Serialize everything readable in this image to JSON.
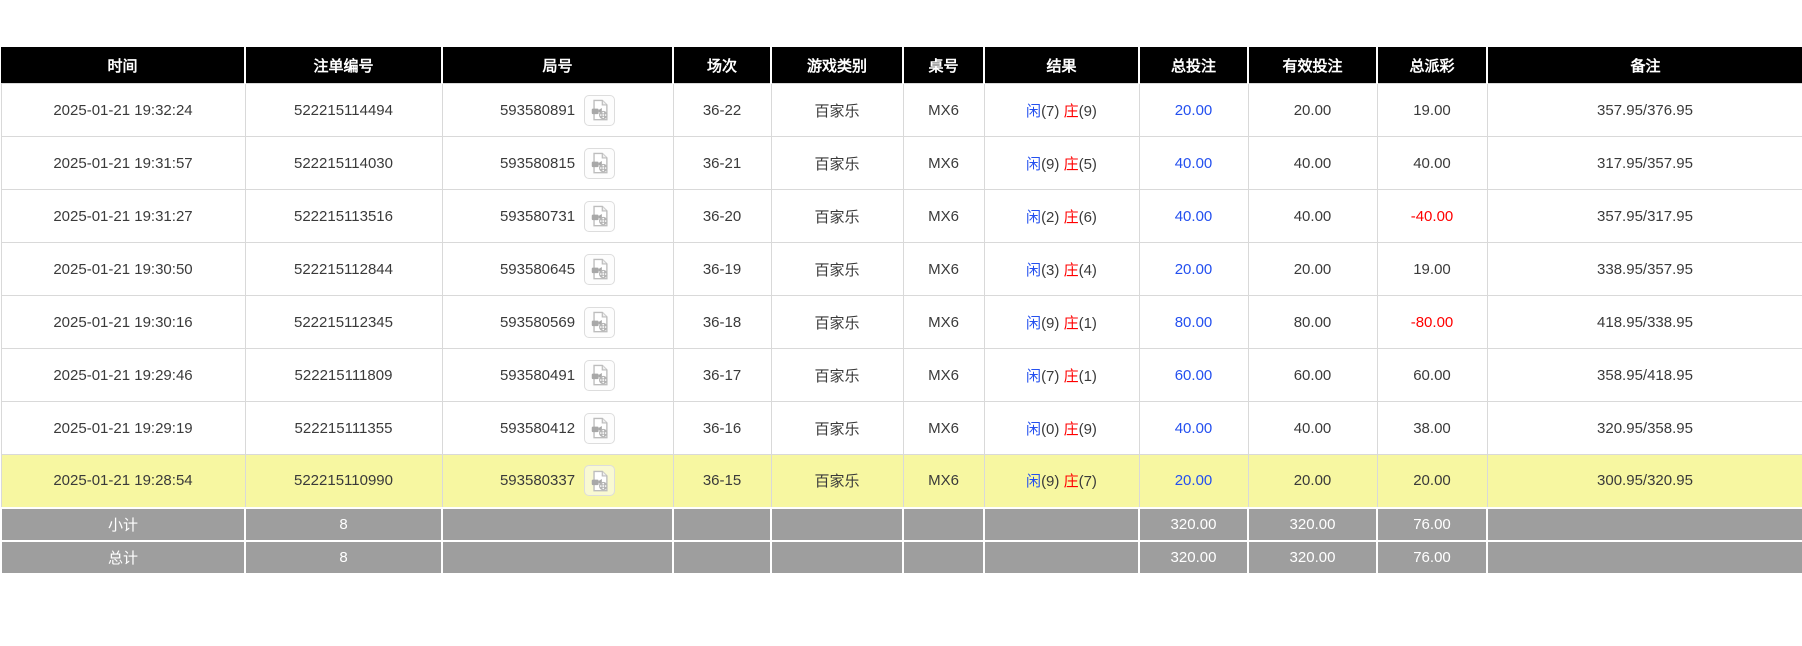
{
  "colors": {
    "header_bg": "#000000",
    "highlight_row": "#f7f7a1",
    "totals_bg": "#9e9e9e",
    "blue": "#2450ef",
    "red": "#ff0000"
  },
  "icons": {
    "video_replay": "video-replay-icon"
  },
  "table": {
    "columns": [
      "时间",
      "注单编号",
      "局号",
      "场次",
      "游戏类别",
      "桌号",
      "结果",
      "总投注",
      "有效投注",
      "总派彩",
      "备注"
    ],
    "rows": [
      {
        "time": "2025-01-21 19:32:24",
        "bet_id": "522215114494",
        "round_id": "593580891",
        "session": "36-22",
        "game_type": "百家乐",
        "table_no": "MX6",
        "result": {
          "player": "闲",
          "player_score": "(7)",
          "banker": "庄",
          "banker_score": "(9)"
        },
        "total_bet": "20.00",
        "valid_bet": "20.00",
        "payout": "19.00",
        "note": "357.95/376.95",
        "highlighted": false
      },
      {
        "time": "2025-01-21 19:31:57",
        "bet_id": "522215114030",
        "round_id": "593580815",
        "session": "36-21",
        "game_type": "百家乐",
        "table_no": "MX6",
        "result": {
          "player": "闲",
          "player_score": "(9)",
          "banker": "庄",
          "banker_score": "(5)"
        },
        "total_bet": "40.00",
        "valid_bet": "40.00",
        "payout": "40.00",
        "note": "317.95/357.95",
        "highlighted": false
      },
      {
        "time": "2025-01-21 19:31:27",
        "bet_id": "522215113516",
        "round_id": "593580731",
        "session": "36-20",
        "game_type": "百家乐",
        "table_no": "MX6",
        "result": {
          "player": "闲",
          "player_score": "(2)",
          "banker": "庄",
          "banker_score": "(6)"
        },
        "total_bet": "40.00",
        "valid_bet": "40.00",
        "payout": "-40.00",
        "note": "357.95/317.95",
        "highlighted": false
      },
      {
        "time": "2025-01-21 19:30:50",
        "bet_id": "522215112844",
        "round_id": "593580645",
        "session": "36-19",
        "game_type": "百家乐",
        "table_no": "MX6",
        "result": {
          "player": "闲",
          "player_score": "(3)",
          "banker": "庄",
          "banker_score": "(4)"
        },
        "total_bet": "20.00",
        "valid_bet": "20.00",
        "payout": "19.00",
        "note": "338.95/357.95",
        "highlighted": false
      },
      {
        "time": "2025-01-21 19:30:16",
        "bet_id": "522215112345",
        "round_id": "593580569",
        "session": "36-18",
        "game_type": "百家乐",
        "table_no": "MX6",
        "result": {
          "player": "闲",
          "player_score": "(9)",
          "banker": "庄",
          "banker_score": "(1)"
        },
        "total_bet": "80.00",
        "valid_bet": "80.00",
        "payout": "-80.00",
        "note": "418.95/338.95",
        "highlighted": false
      },
      {
        "time": "2025-01-21 19:29:46",
        "bet_id": "522215111809",
        "round_id": "593580491",
        "session": "36-17",
        "game_type": "百家乐",
        "table_no": "MX6",
        "result": {
          "player": "闲",
          "player_score": "(7)",
          "banker": "庄",
          "banker_score": "(1)"
        },
        "total_bet": "60.00",
        "valid_bet": "60.00",
        "payout": "60.00",
        "note": "358.95/418.95",
        "highlighted": false
      },
      {
        "time": "2025-01-21 19:29:19",
        "bet_id": "522215111355",
        "round_id": "593580412",
        "session": "36-16",
        "game_type": "百家乐",
        "table_no": "MX6",
        "result": {
          "player": "闲",
          "player_score": "(0)",
          "banker": "庄",
          "banker_score": "(9)"
        },
        "total_bet": "40.00",
        "valid_bet": "40.00",
        "payout": "38.00",
        "note": "320.95/358.95",
        "highlighted": false
      },
      {
        "time": "2025-01-21 19:28:54",
        "bet_id": "522215110990",
        "round_id": "593580337",
        "session": "36-15",
        "game_type": "百家乐",
        "table_no": "MX6",
        "result": {
          "player": "闲",
          "player_score": "(9)",
          "banker": "庄",
          "banker_score": "(7)"
        },
        "total_bet": "20.00",
        "valid_bet": "20.00",
        "payout": "20.00",
        "note": "300.95/320.95",
        "highlighted": true
      }
    ],
    "subtotal": {
      "label": "小计",
      "count": "8",
      "total_bet": "320.00",
      "valid_bet": "320.00",
      "payout": "76.00"
    },
    "grand_total": {
      "label": "总计",
      "count": "8",
      "total_bet": "320.00",
      "valid_bet": "320.00",
      "payout": "76.00"
    }
  }
}
